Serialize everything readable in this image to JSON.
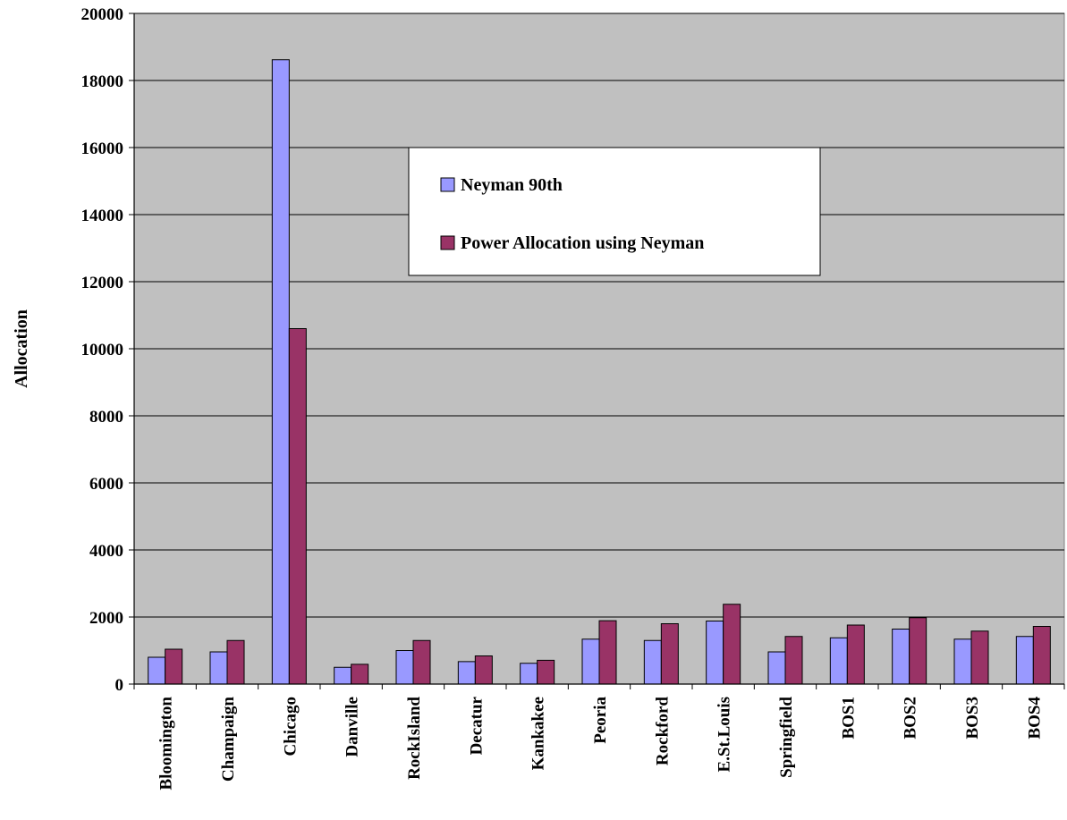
{
  "chart_data": {
    "type": "bar",
    "title": "",
    "xlabel": "",
    "ylabel": "Allocation",
    "ylim": [
      0,
      20000
    ],
    "yticks": [
      0,
      2000,
      4000,
      6000,
      8000,
      10000,
      12000,
      14000,
      16000,
      18000,
      20000
    ],
    "grid": true,
    "legend_position": "top-center",
    "plot_background": "#c0c0c0",
    "categories": [
      "Bloomington",
      "Champaign",
      "Chicago",
      "Danville",
      "RockIsland",
      "Decatur",
      "Kankakee",
      "Peoria",
      "Rockford",
      "E.St.Louis",
      "Springfield",
      "BOS1",
      "BOS2",
      "BOS3",
      "BOS4"
    ],
    "series": [
      {
        "name": "Neyman 90th",
        "color": "#9999ff",
        "values": [
          800,
          960,
          18620,
          500,
          1000,
          670,
          620,
          1340,
          1300,
          1880,
          960,
          1380,
          1640,
          1340,
          1420
        ]
      },
      {
        "name": "Power Allocation using Neyman",
        "color": "#993366",
        "values": [
          1040,
          1300,
          10600,
          590,
          1300,
          840,
          710,
          1890,
          1800,
          2380,
          1420,
          1760,
          1980,
          1580,
          1720
        ]
      }
    ]
  }
}
